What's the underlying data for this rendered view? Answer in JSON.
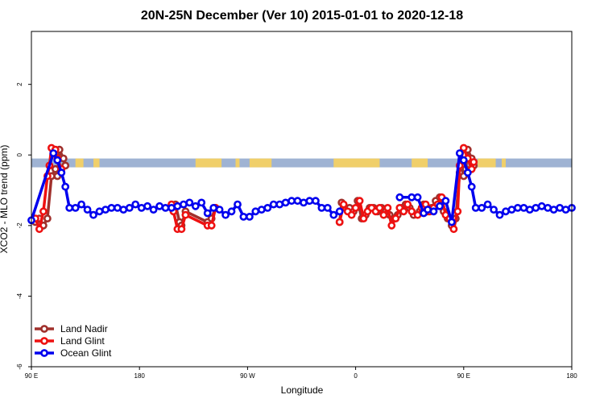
{
  "chart_data": {
    "type": "line",
    "title": "20N-25N December (Ver 10)   2015-01-01 to 2020-12-18",
    "xlabel": "Longitude",
    "ylabel": "XCO2 - MLO trend (ppm)",
    "xlim": [
      -90,
      180
    ],
    "ylim": [
      -6,
      3.5
    ],
    "x_ticks": [
      {
        "value": -90,
        "label": "90 E"
      },
      {
        "value": -36,
        "label": "180"
      },
      {
        "value": 18,
        "label": "90 W"
      },
      {
        "value": 72,
        "label": "0"
      },
      {
        "value": 126,
        "label": "90 E"
      },
      {
        "value": 180,
        "label": "180"
      }
    ],
    "y_ticks": [
      {
        "value": -6,
        "label": "-6"
      },
      {
        "value": -4,
        "label": "-4"
      },
      {
        "value": -2,
        "label": "-2"
      },
      {
        "value": 0,
        "label": "0"
      },
      {
        "value": 2,
        "label": "2"
      }
    ],
    "land_band": {
      "y_range": [
        -0.35,
        -0.1
      ],
      "ocean_color": "#9fb3d3",
      "land_color": "#f0cf6a",
      "land_segments": [
        [
          -68,
          -64
        ],
        [
          -59,
          -56
        ],
        [
          -8,
          5
        ],
        [
          12,
          14
        ],
        [
          19,
          30
        ],
        [
          61,
          84
        ],
        [
          100,
          108
        ],
        [
          133,
          142
        ],
        [
          145,
          147
        ]
      ]
    },
    "series": [
      {
        "name": "Land Nadir",
        "color": "#a0302c",
        "points": [
          [
            -88,
            -1.9
          ],
          [
            -86,
            -1.8
          ],
          [
            -84,
            -2.0
          ],
          [
            -82,
            -1.8
          ],
          [
            -80,
            -0.6
          ],
          [
            -78,
            -0.4
          ],
          [
            -77,
            -0.6
          ],
          [
            -76,
            0.15
          ],
          [
            -74,
            -0.1
          ],
          [
            -73,
            -0.3
          ],
          [
            -18,
            -1.4
          ],
          [
            -16,
            -1.9
          ],
          [
            -15,
            -2.0
          ],
          [
            -13,
            -1.6
          ],
          [
            -2,
            -1.9
          ],
          [
            0,
            -1.8
          ],
          [
            2,
            -1.5
          ],
          [
            64,
            -1.9
          ],
          [
            65,
            -1.35
          ],
          [
            67,
            -1.5
          ],
          [
            69,
            -1.5
          ],
          [
            71,
            -1.6
          ],
          [
            73,
            -1.3
          ],
          [
            75,
            -1.8
          ],
          [
            77,
            -1.7
          ],
          [
            79,
            -1.5
          ],
          [
            81,
            -1.5
          ],
          [
            83,
            -1.6
          ],
          [
            85,
            -1.5
          ],
          [
            87,
            -1.6
          ],
          [
            89,
            -1.7
          ],
          [
            91,
            -1.8
          ],
          [
            93,
            -1.7
          ],
          [
            95,
            -1.5
          ],
          [
            97,
            -1.4
          ],
          [
            99,
            -1.5
          ],
          [
            101,
            -1.7
          ],
          [
            104,
            -1.6
          ],
          [
            106,
            -1.4
          ],
          [
            108,
            -1.6
          ],
          [
            110,
            -1.5
          ],
          [
            112,
            -1.3
          ],
          [
            114,
            -1.2
          ],
          [
            116,
            -1.6
          ],
          [
            118,
            -1.8
          ],
          [
            120,
            -2.0
          ],
          [
            122,
            -1.8
          ],
          [
            124,
            -0.5
          ],
          [
            126,
            -0.6
          ],
          [
            127,
            -0.4
          ],
          [
            128,
            0.15
          ],
          [
            130,
            -0.1
          ],
          [
            131,
            -0.3
          ]
        ]
      },
      {
        "name": "Land Glint",
        "color": "#ee1111",
        "points": [
          [
            -88,
            -1.8
          ],
          [
            -86,
            -2.1
          ],
          [
            -84,
            -1.6
          ],
          [
            -82,
            -0.6
          ],
          [
            -81,
            -0.3
          ],
          [
            -80,
            0.2
          ],
          [
            -78,
            0.15
          ],
          [
            -77,
            -0.1
          ],
          [
            -75,
            -0.4
          ],
          [
            -20,
            -1.4
          ],
          [
            -19,
            -1.6
          ],
          [
            -17,
            -2.1
          ],
          [
            -15,
            -2.1
          ],
          [
            -13,
            -1.7
          ],
          [
            -2,
            -2.0
          ],
          [
            0,
            -2.0
          ],
          [
            2,
            -1.5
          ],
          [
            64,
            -1.9
          ],
          [
            66,
            -1.4
          ],
          [
            68,
            -1.6
          ],
          [
            70,
            -1.7
          ],
          [
            72,
            -1.5
          ],
          [
            74,
            -1.3
          ],
          [
            76,
            -1.8
          ],
          [
            78,
            -1.6
          ],
          [
            80,
            -1.5
          ],
          [
            82,
            -1.6
          ],
          [
            84,
            -1.5
          ],
          [
            86,
            -1.7
          ],
          [
            88,
            -1.5
          ],
          [
            90,
            -2.0
          ],
          [
            92,
            -1.8
          ],
          [
            94,
            -1.5
          ],
          [
            96,
            -1.6
          ],
          [
            98,
            -1.4
          ],
          [
            100,
            -1.6
          ],
          [
            103,
            -1.7
          ],
          [
            105,
            -1.5
          ],
          [
            107,
            -1.4
          ],
          [
            109,
            -1.6
          ],
          [
            111,
            -1.5
          ],
          [
            113,
            -1.4
          ],
          [
            115,
            -1.2
          ],
          [
            117,
            -1.7
          ],
          [
            119,
            -1.8
          ],
          [
            121,
            -2.1
          ],
          [
            123,
            -1.6
          ],
          [
            124,
            -0.3
          ],
          [
            126,
            0.2
          ],
          [
            128,
            -0.1
          ],
          [
            130,
            -0.4
          ],
          [
            131,
            -0.2
          ]
        ]
      },
      {
        "name": "Ocean Glint",
        "color": "#0000ee",
        "points": [
          [
            -90,
            -1.85
          ],
          [
            -79,
            0.05
          ],
          [
            -77,
            -0.15
          ],
          [
            -75,
            -0.5
          ],
          [
            -73,
            -0.9
          ],
          [
            -71,
            -1.5
          ],
          [
            -68,
            -1.5
          ],
          [
            -65,
            -1.4
          ],
          [
            -62,
            -1.55
          ],
          [
            -59,
            -1.7
          ],
          [
            -56,
            -1.6
          ],
          [
            -53,
            -1.55
          ],
          [
            -50,
            -1.5
          ],
          [
            -47,
            -1.5
          ],
          [
            -44,
            -1.55
          ],
          [
            -41,
            -1.5
          ],
          [
            -38,
            -1.4
          ],
          [
            -35,
            -1.5
          ],
          [
            -32,
            -1.45
          ],
          [
            -29,
            -1.55
          ],
          [
            -26,
            -1.45
          ],
          [
            -23,
            -1.5
          ],
          [
            -20,
            -1.5
          ],
          [
            -17,
            -1.45
          ],
          [
            -14,
            -1.4
          ],
          [
            -11,
            -1.35
          ],
          [
            -8,
            -1.45
          ],
          [
            -5,
            -1.35
          ],
          [
            -2,
            -1.65
          ],
          [
            1,
            -1.5
          ],
          [
            4,
            -1.55
          ],
          [
            7,
            -1.7
          ],
          [
            10,
            -1.6
          ],
          [
            13,
            -1.4
          ],
          [
            16,
            -1.75
          ],
          [
            19,
            -1.75
          ],
          [
            22,
            -1.6
          ],
          [
            25,
            -1.55
          ],
          [
            28,
            -1.5
          ],
          [
            31,
            -1.4
          ],
          [
            34,
            -1.4
          ],
          [
            37,
            -1.35
          ],
          [
            40,
            -1.3
          ],
          [
            43,
            -1.3
          ],
          [
            46,
            -1.35
          ],
          [
            49,
            -1.3
          ],
          [
            52,
            -1.3
          ],
          [
            55,
            -1.5
          ],
          [
            58,
            -1.5
          ],
          [
            61,
            -1.7
          ],
          [
            64,
            -1.6
          ],
          [
            94,
            -1.2
          ],
          [
            100,
            -1.2
          ],
          [
            103,
            -1.2
          ],
          [
            106,
            -1.65
          ],
          [
            108,
            -1.55
          ],
          [
            111,
            -1.6
          ],
          [
            114,
            -1.45
          ],
          [
            117,
            -1.3
          ],
          [
            120,
            -1.9
          ],
          [
            124,
            0.05
          ],
          [
            126,
            -0.15
          ],
          [
            128,
            -0.5
          ],
          [
            130,
            -0.9
          ],
          [
            132,
            -1.5
          ],
          [
            135,
            -1.5
          ],
          [
            138,
            -1.4
          ],
          [
            141,
            -1.55
          ],
          [
            144,
            -1.7
          ],
          [
            147,
            -1.6
          ],
          [
            150,
            -1.55
          ],
          [
            153,
            -1.5
          ],
          [
            156,
            -1.5
          ],
          [
            159,
            -1.55
          ],
          [
            162,
            -1.5
          ],
          [
            165,
            -1.45
          ],
          [
            168,
            -1.5
          ],
          [
            171,
            -1.55
          ],
          [
            174,
            -1.5
          ],
          [
            177,
            -1.55
          ],
          [
            180,
            -1.5
          ]
        ]
      }
    ],
    "legend": {
      "position": "bottom-left",
      "entries": [
        {
          "name": "Land Nadir",
          "color": "#a0302c"
        },
        {
          "name": "Land Glint",
          "color": "#ee1111"
        },
        {
          "name": "Ocean Glint",
          "color": "#0000ee"
        }
      ]
    }
  }
}
